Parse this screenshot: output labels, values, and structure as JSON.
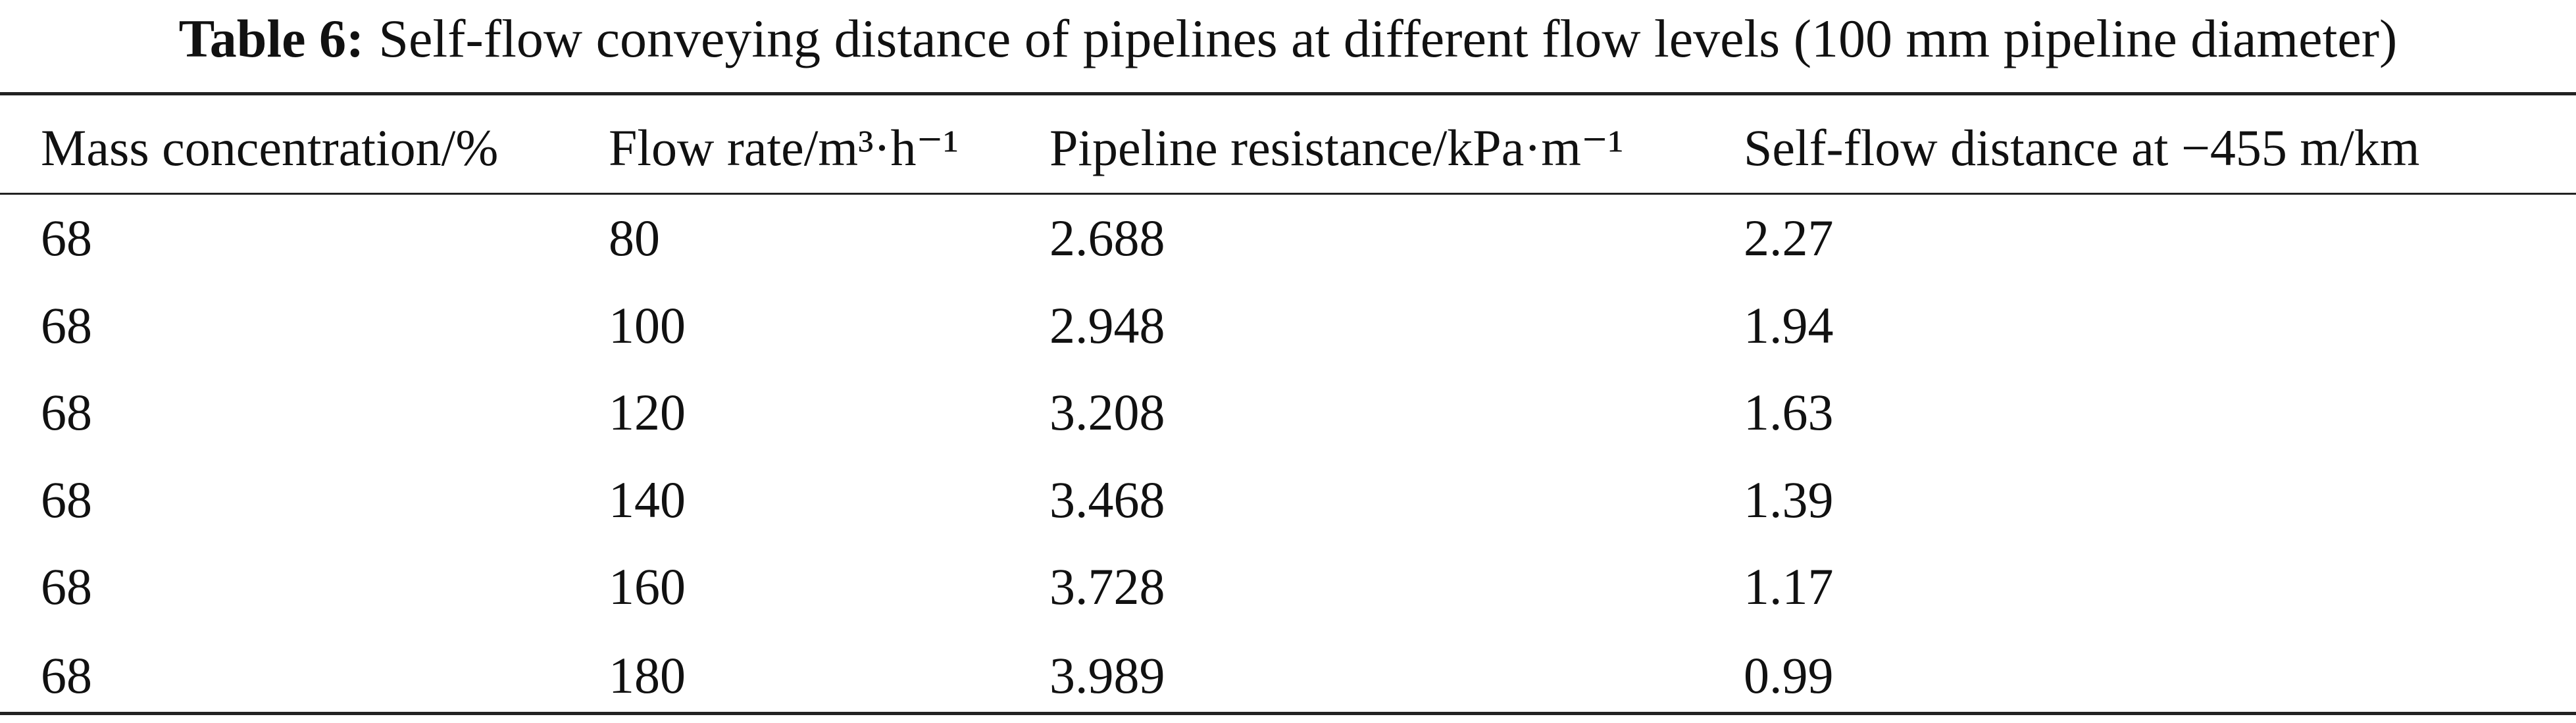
{
  "caption": {
    "label": "Table 6:",
    "text": "Self-flow conveying distance of pipelines at different flow levels (100 mm pipeline diameter)"
  },
  "table": {
    "header": [
      "Mass concentration/%",
      "Flow rate/m³·h⁻¹",
      "Pipeline resistance/kPa·m⁻¹",
      "Self-flow distance at −455 m/km"
    ],
    "rows": [
      [
        "68",
        "80",
        "2.688",
        "2.27"
      ],
      [
        "68",
        "100",
        "2.948",
        "1.94"
      ],
      [
        "68",
        "120",
        "3.208",
        "1.63"
      ],
      [
        "68",
        "140",
        "3.468",
        "1.39"
      ],
      [
        "68",
        "160",
        "3.728",
        "1.17"
      ],
      [
        "68",
        "180",
        "3.989",
        "0.99"
      ]
    ]
  }
}
